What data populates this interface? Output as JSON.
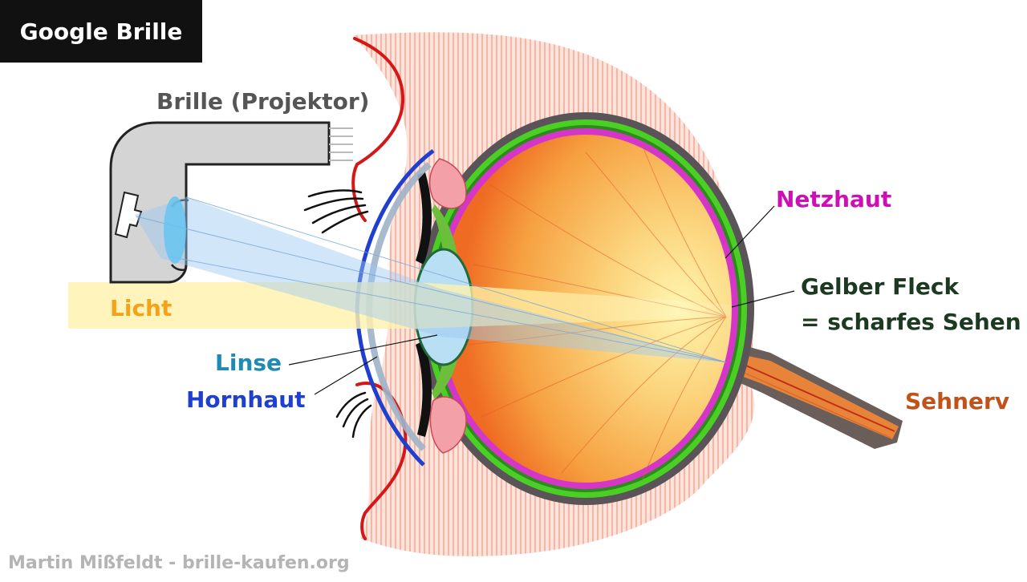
{
  "title": "Google Brille",
  "labels": {
    "glasses": "Brille (Projektor)",
    "light": "Licht",
    "lens": "Linse",
    "cornea": "Hornhaut",
    "retina": "Netzhaut",
    "macula_line1": "Gelber Fleck",
    "macula_line2": "= scharfes Sehen",
    "optic_nerve": "Sehnerv"
  },
  "credit": "Martin Mißfeldt - brille-kaufen.org",
  "colors": {
    "title_bg": "#111111",
    "title_text": "#ffffff",
    "glasses_label": "#555555",
    "light_label": "#f5a21b",
    "lens_label": "#1f8ab3",
    "cornea_label": "#1e3fd0",
    "retina_label": "#cc10b5",
    "macula_label": "#1c3a22",
    "optic_nerve_label": "#c0521a",
    "credit": "#b4b4b4",
    "eyeball_center": "#fff3a0",
    "eyeball_edge": "#f06020",
    "retina_layer": "#d636c8",
    "choroid_layer": "#4ad024",
    "sclera_layer": "#5a5358",
    "skin": "#f6c3b4",
    "lid_edge": "#d41818",
    "projector": "#d4d4d4",
    "beam": "#9cc8f4",
    "light_beam": "#fff0a8"
  }
}
